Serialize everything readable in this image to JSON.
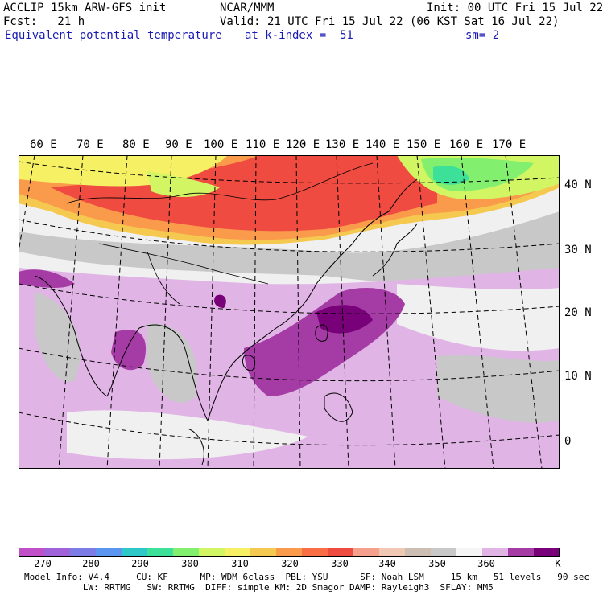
{
  "header": {
    "model_line": "ACCLIP 15km ARW-GFS init",
    "org": "NCAR/MMM",
    "init": "Init: 00 UTC Fri 15 Jul 22",
    "fcst": "Fcst:   21 h",
    "valid": "Valid: 21 UTC Fri 15 Jul 22 (06 KST Sat 16 Jul 22)",
    "field": "Equivalent potential temperature",
    "level": "at k-index =  51",
    "smoothing": "sm= 2"
  },
  "map": {
    "longitude_labels": [
      "60 E",
      "70 E",
      "80 E",
      "90 E",
      "100 E",
      "110 E",
      "120 E",
      "130 E",
      "140 E",
      "150 E",
      "160 E",
      "170 E"
    ],
    "latitude_labels": [
      "40 N",
      "30 N",
      "20 N",
      "10 N",
      "0"
    ],
    "field_units": "K"
  },
  "colorbar": {
    "unit": "K",
    "tick_labels": [
      "270",
      "280",
      "290",
      "300",
      "310",
      "320",
      "330",
      "340",
      "350",
      "360"
    ],
    "colors": [
      "#c050c8",
      "#a062d8",
      "#7c7ce6",
      "#5a96f0",
      "#2ec8c8",
      "#3ce098",
      "#82f06e",
      "#d2f564",
      "#f5f064",
      "#f5c850",
      "#fa9b4b",
      "#fa6e46",
      "#f04b41",
      "#f5a08c",
      "#f0c8b4",
      "#cdbeb4",
      "#c8c8c8",
      "#f5f5f5",
      "#e1b4e6",
      "#a53ca5",
      "#780078"
    ]
  },
  "footer": {
    "line1": "Model Info: V4.4     CU: KF      MP: WDM 6class  PBL: YSU      SF: Noah LSM     15 km   51 levels   90 sec",
    "line2": "           LW: RRTMG   SW: RRTMG  DIFF: simple KM: 2D Smagor DAMP: Rayleigh3  SFLAY: MM5"
  }
}
